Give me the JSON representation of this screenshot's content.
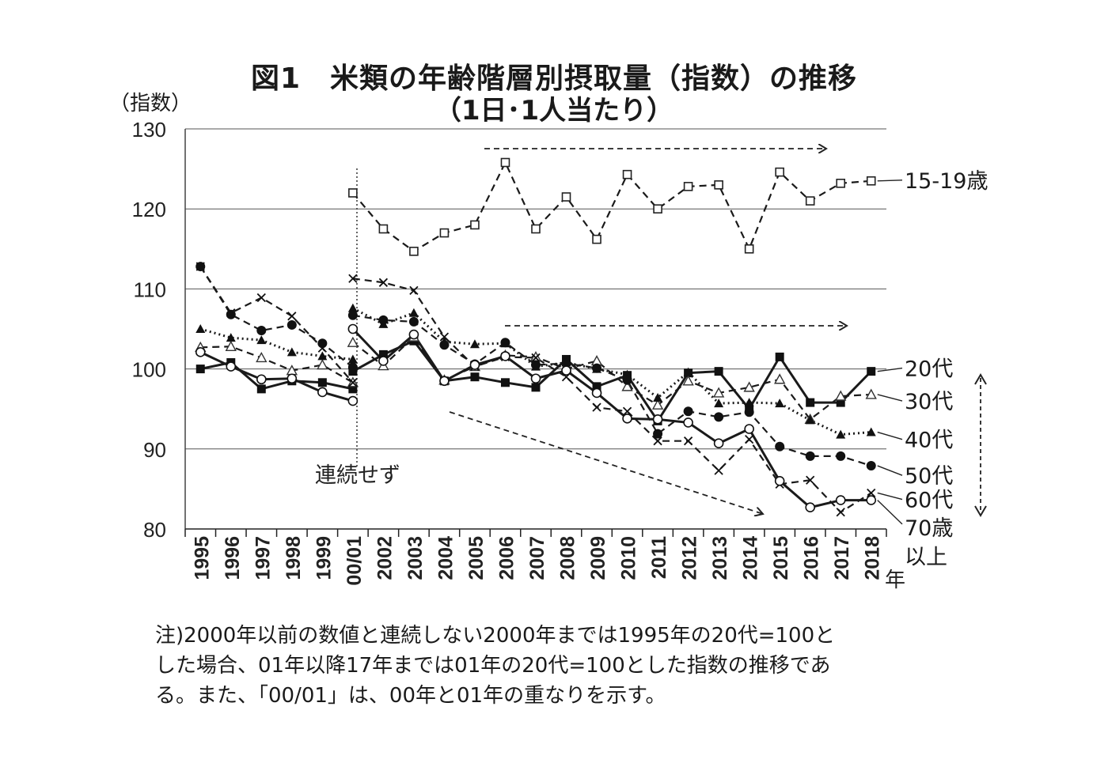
{
  "title": "図1　米類の年齢階層別摂取量（指数）の推移",
  "subtitle": "（1日･1人当たり）",
  "ylabel": "（指数）",
  "xunit": "年",
  "discontinuity_label": "連続せず",
  "notes": [
    "注)2000年以前の数値と連続しない2000年までは1995年の20代=100と",
    "した場合、01年以降17年までは01年の20代=100とした指数の推移であ",
    "る。また、「00/01」は、00年と01年の重なりを示す。"
  ],
  "chart_data": {
    "type": "line",
    "ylim": [
      80,
      130
    ],
    "yticks": [
      80,
      90,
      100,
      110,
      120,
      130
    ],
    "grid": true,
    "x_labels": [
      "1995",
      "1996",
      "1997",
      "1998",
      "1999",
      "00/01",
      "2002",
      "2003",
      "2004",
      "2005",
      "2006",
      "2007",
      "2008",
      "2009",
      "2010",
      "2011",
      "2012",
      "2013",
      "2014",
      "2015",
      "2016",
      "2017",
      "2018"
    ],
    "series": [
      {
        "name": "15-19歳",
        "marker": "open-square",
        "line": "dashed",
        "segments": [
          [
            [
              5,
              122
            ],
            [
              6,
              117.5
            ],
            [
              7,
              114.7
            ],
            [
              8,
              117
            ],
            [
              9,
              118
            ],
            [
              10,
              125.8
            ],
            [
              11,
              117.5
            ],
            [
              12,
              121.5
            ],
            [
              13,
              116.2
            ],
            [
              14,
              124.3
            ],
            [
              15,
              120
            ],
            [
              16,
              122.8
            ],
            [
              17,
              123
            ],
            [
              18,
              115
            ],
            [
              19,
              124.6
            ],
            [
              20,
              121
            ],
            [
              21,
              123.2
            ],
            [
              22,
              123.5
            ]
          ]
        ]
      },
      {
        "name": "20代",
        "marker": "filled-square",
        "line": "solid",
        "segments": [
          [
            [
              0,
              100
            ],
            [
              1,
              100.8
            ],
            [
              2,
              97.5
            ],
            [
              3,
              98.5
            ],
            [
              4,
              98.3
            ],
            [
              5,
              97.5
            ]
          ],
          [
            [
              5,
              99.7
            ],
            [
              6,
              101.8
            ],
            [
              7,
              103.5
            ],
            [
              8,
              98.5
            ],
            [
              9,
              99
            ],
            [
              10,
              98.3
            ],
            [
              11,
              97.7
            ],
            [
              12,
              101.2
            ],
            [
              13,
              97.8
            ],
            [
              14,
              99.2
            ],
            [
              15,
              93.5
            ],
            [
              16,
              99.5
            ],
            [
              17,
              99.7
            ],
            [
              18,
              95
            ],
            [
              19,
              101.5
            ],
            [
              20,
              95.8
            ],
            [
              21,
              95.8
            ],
            [
              22,
              99.7
            ]
          ]
        ]
      },
      {
        "name": "30代",
        "marker": "open-triangle",
        "line": "dashed",
        "segments": [
          [
            [
              0,
              102.7
            ],
            [
              1,
              102.8
            ],
            [
              2,
              101.4
            ],
            [
              3,
              99.8
            ],
            [
              4,
              100.5
            ],
            [
              5,
              98.3
            ]
          ],
          [
            [
              5,
              103.3
            ],
            [
              6,
              100.4
            ],
            [
              7,
              104
            ],
            [
              8,
              98.6
            ],
            [
              9,
              100.3
            ],
            [
              10,
              101.7
            ],
            [
              11,
              101.5
            ],
            [
              12,
              100
            ],
            [
              13,
              101
            ],
            [
              14,
              97.8
            ],
            [
              15,
              95.5
            ],
            [
              16,
              98.5
            ],
            [
              17,
              97
            ],
            [
              18,
              97.7
            ],
            [
              19,
              98.7
            ],
            [
              20,
              93.7
            ],
            [
              21,
              96.6
            ],
            [
              22,
              96.8
            ]
          ]
        ]
      },
      {
        "name": "40代",
        "marker": "filled-triangle",
        "line": "dotted",
        "segments": [
          [
            [
              0,
              105
            ],
            [
              1,
              103.9
            ],
            [
              2,
              103.6
            ],
            [
              3,
              102.1
            ],
            [
              4,
              101.6
            ],
            [
              5,
              101.2
            ]
          ],
          [
            [
              5,
              107.6
            ],
            [
              6,
              105.6
            ],
            [
              7,
              107
            ],
            [
              8,
              103.4
            ],
            [
              9,
              103.1
            ],
            [
              10,
              103.2
            ],
            [
              11,
              100.3
            ],
            [
              12,
              100.8
            ],
            [
              13,
              100
            ],
            [
              14,
              99.3
            ],
            [
              15,
              96.4
            ],
            [
              16,
              99.6
            ],
            [
              17,
              95.7
            ],
            [
              18,
              95.8
            ],
            [
              19,
              95.7
            ],
            [
              20,
              93.6
            ],
            [
              21,
              91.8
            ],
            [
              22,
              92.1
            ]
          ]
        ]
      },
      {
        "name": "50代",
        "marker": "filled-circle",
        "line": "dashed",
        "segments": [
          [
            [
              0,
              112.8
            ],
            [
              1,
              106.8
            ],
            [
              2,
              104.8
            ],
            [
              3,
              105.5
            ],
            [
              4,
              103.2
            ],
            [
              5,
              100.2
            ]
          ],
          [
            [
              5,
              106.7
            ],
            [
              6,
              106.1
            ],
            [
              7,
              105.9
            ],
            [
              8,
              103
            ],
            [
              9,
              100.6
            ],
            [
              10,
              103.3
            ],
            [
              11,
              100.5
            ],
            [
              12,
              100.7
            ],
            [
              13,
              100.1
            ],
            [
              14,
              98.6
            ],
            [
              15,
              91.9
            ],
            [
              16,
              94.7
            ],
            [
              17,
              94
            ],
            [
              18,
              94.6
            ],
            [
              19,
              90.3
            ],
            [
              20,
              89.1
            ],
            [
              21,
              89.1
            ],
            [
              22,
              87.9
            ]
          ]
        ]
      },
      {
        "name": "60代",
        "marker": "cross",
        "line": "dashed",
        "segments": [
          [
            [
              0,
              112.8
            ],
            [
              1,
              107
            ],
            [
              2,
              108.9
            ],
            [
              3,
              106.6
            ],
            [
              4,
              102.6
            ],
            [
              5,
              98.3
            ]
          ],
          [
            [
              5,
              111.3
            ],
            [
              6,
              110.8
            ],
            [
              7,
              109.8
            ],
            [
              8,
              104
            ],
            [
              9,
              100.3
            ],
            [
              10,
              101.5
            ],
            [
              11,
              101.4
            ],
            [
              12,
              99
            ],
            [
              13,
              95.2
            ],
            [
              14,
              94.7
            ],
            [
              15,
              91
            ],
            [
              16,
              91
            ],
            [
              17,
              87.3
            ],
            [
              18,
              91.2
            ],
            [
              19,
              85.6
            ],
            [
              20,
              86.1
            ],
            [
              21,
              82.1
            ],
            [
              22,
              84.5
            ]
          ]
        ]
      },
      {
        "name": "70歳以上",
        "marker": "open-circle",
        "line": "solid",
        "segments": [
          [
            [
              0,
              102.1
            ],
            [
              1,
              100.3
            ],
            [
              2,
              98.7
            ],
            [
              3,
              98.8
            ],
            [
              4,
              97.1
            ],
            [
              5,
              96
            ]
          ],
          [
            [
              5,
              105
            ],
            [
              6,
              101
            ],
            [
              7,
              104.3
            ],
            [
              8,
              98.5
            ],
            [
              9,
              100.5
            ],
            [
              10,
              101.6
            ],
            [
              11,
              98.8
            ],
            [
              12,
              99.8
            ],
            [
              13,
              97
            ],
            [
              14,
              93.8
            ],
            [
              15,
              93.7
            ],
            [
              16,
              93.3
            ],
            [
              17,
              90.7
            ],
            [
              18,
              92.5
            ],
            [
              19,
              86
            ],
            [
              20,
              82.7
            ],
            [
              21,
              83.6
            ],
            [
              22,
              83.6
            ]
          ]
        ]
      }
    ],
    "series_labels": [
      {
        "text": "15-19歳",
        "y": 123.6
      },
      {
        "text": "20代",
        "y": 100.1
      },
      {
        "text": "30代",
        "y": 96.0
      },
      {
        "text": "40代",
        "y": 91.2
      },
      {
        "text": "50代",
        "y": 86.7
      },
      {
        "text": "60代",
        "y": 83.7
      },
      {
        "text": "70歳",
        "y": 80.2
      },
      {
        "text": "以上",
        "y": 76.6
      }
    ]
  }
}
